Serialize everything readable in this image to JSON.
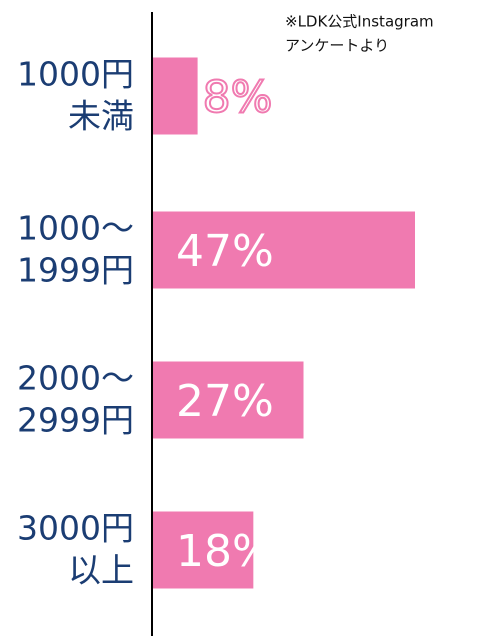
{
  "chart_data": {
    "type": "bar",
    "orientation": "horizontal",
    "annotation": [
      "※LDK公式Instagram",
      "アンケートより"
    ],
    "categories": [
      [
        "1000円",
        "未満"
      ],
      [
        "1000～",
        "1999円"
      ],
      [
        "2000～",
        "2999円"
      ],
      [
        "3000円",
        "以上"
      ]
    ],
    "values": [
      8,
      47,
      27,
      18
    ],
    "value_labels": [
      "8%",
      "47%",
      "27%",
      "18%"
    ],
    "color": "#f07ab0"
  }
}
